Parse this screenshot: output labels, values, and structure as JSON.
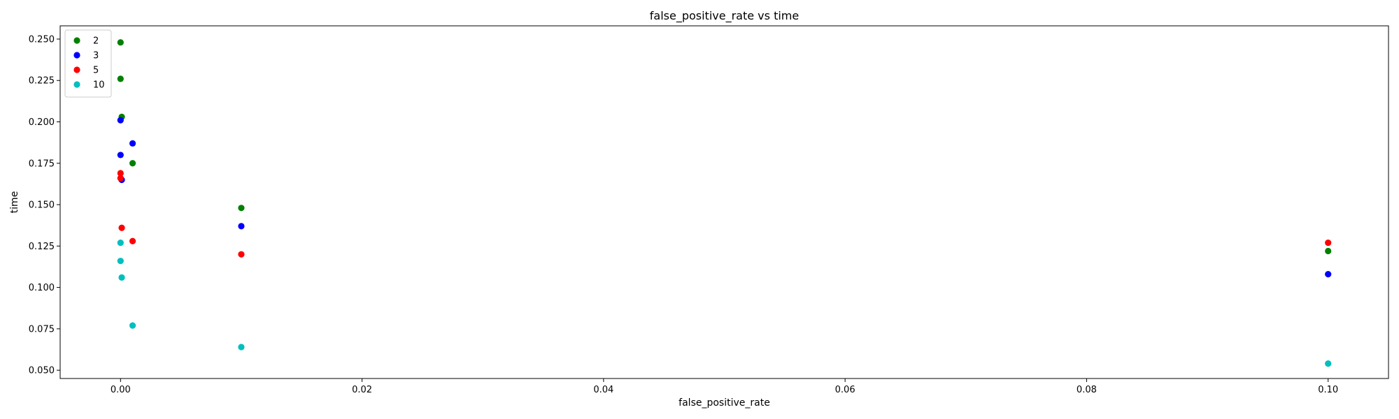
{
  "chart_data": {
    "type": "scatter",
    "title": "false_positive_rate vs time",
    "xlabel": "false_positive_rate",
    "ylabel": "time",
    "xlim": [
      -0.005,
      0.105
    ],
    "ylim": [
      0.045,
      0.258
    ],
    "xticks": [
      0.0,
      0.02,
      0.04,
      0.06,
      0.08,
      0.1
    ],
    "xtick_labels": [
      "0.00",
      "0.02",
      "0.04",
      "0.06",
      "0.08",
      "0.10"
    ],
    "yticks": [
      0.05,
      0.075,
      0.1,
      0.125,
      0.15,
      0.175,
      0.2,
      0.225,
      0.25
    ],
    "ytick_labels": [
      "0.050",
      "0.075",
      "0.100",
      "0.125",
      "0.150",
      "0.175",
      "0.200",
      "0.225",
      "0.250"
    ],
    "grid": false,
    "legend_position": "top-left",
    "series": [
      {
        "name": "2",
        "color": "#008000",
        "points": [
          {
            "x": 0.0,
            "y": 0.248
          },
          {
            "x": 0.0,
            "y": 0.226
          },
          {
            "x": 0.0001,
            "y": 0.203
          },
          {
            "x": 0.001,
            "y": 0.175
          },
          {
            "x": 0.01,
            "y": 0.148
          },
          {
            "x": 0.1,
            "y": 0.122
          }
        ]
      },
      {
        "name": "3",
        "color": "#0000ff",
        "points": [
          {
            "x": 0.0,
            "y": 0.201
          },
          {
            "x": 0.0,
            "y": 0.18
          },
          {
            "x": 0.0001,
            "y": 0.165
          },
          {
            "x": 0.001,
            "y": 0.187
          },
          {
            "x": 0.01,
            "y": 0.137
          },
          {
            "x": 0.1,
            "y": 0.108
          }
        ]
      },
      {
        "name": "5",
        "color": "#ff0000",
        "points": [
          {
            "x": 0.0,
            "y": 0.169
          },
          {
            "x": 0.0,
            "y": 0.166
          },
          {
            "x": 0.0001,
            "y": 0.136
          },
          {
            "x": 0.001,
            "y": 0.128
          },
          {
            "x": 0.01,
            "y": 0.12
          },
          {
            "x": 0.1,
            "y": 0.127
          }
        ]
      },
      {
        "name": "10",
        "color": "#00bfbf",
        "points": [
          {
            "x": 0.0,
            "y": 0.127
          },
          {
            "x": 0.0,
            "y": 0.116
          },
          {
            "x": 0.0001,
            "y": 0.106
          },
          {
            "x": 0.001,
            "y": 0.077
          },
          {
            "x": 0.01,
            "y": 0.064
          },
          {
            "x": 0.1,
            "y": 0.054
          }
        ]
      }
    ]
  }
}
